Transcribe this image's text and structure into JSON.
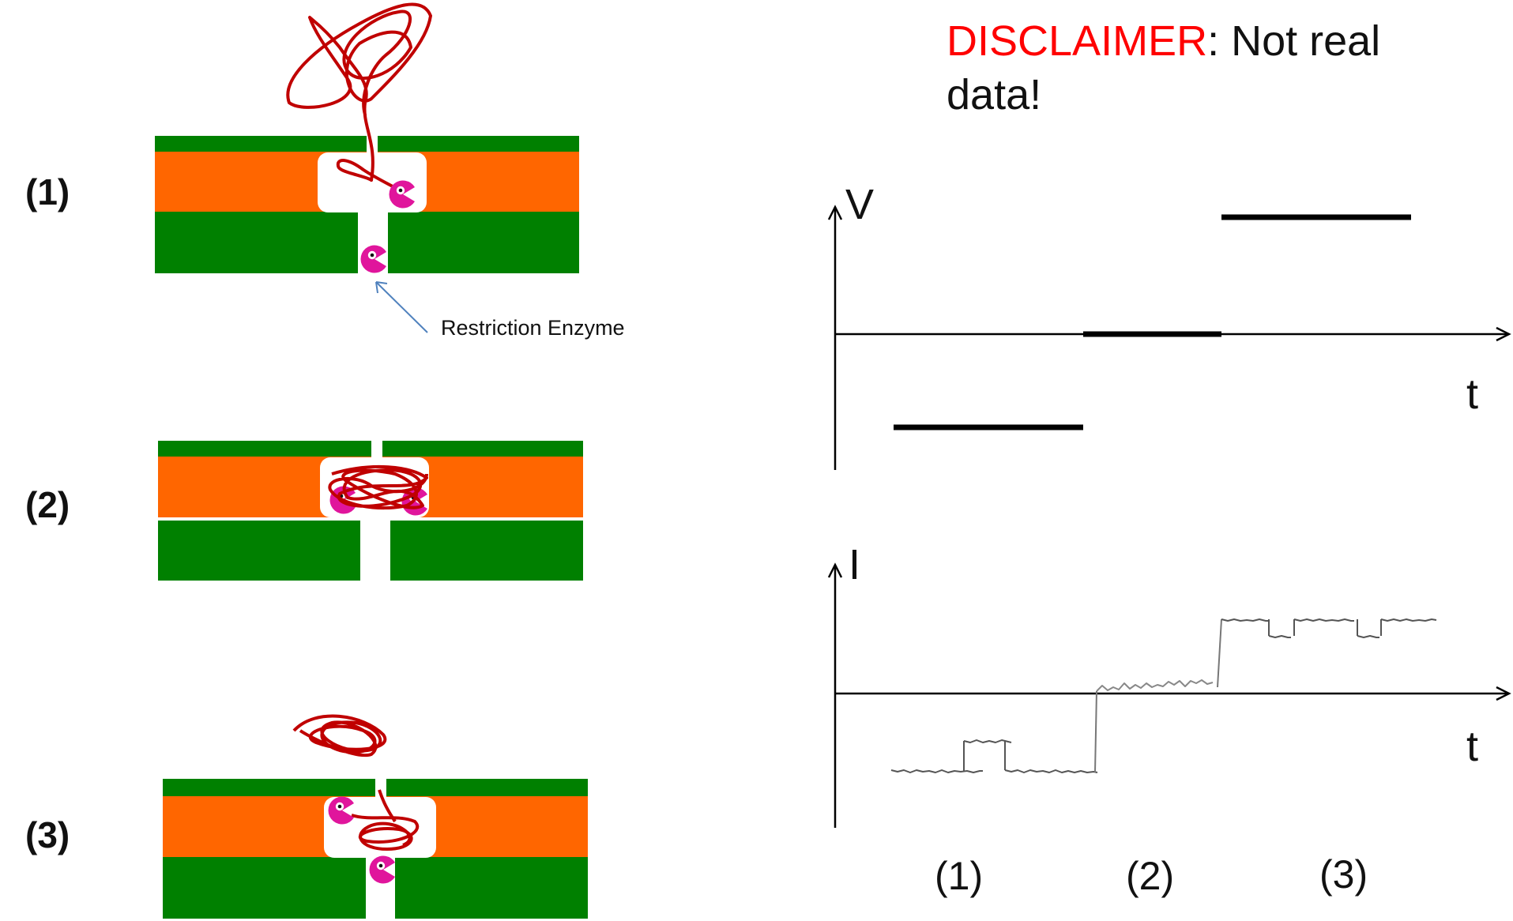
{
  "steps": [
    "(1)",
    "(2)",
    "(3)"
  ],
  "enzyme_label": "Restriction Enzyme",
  "disclaimer": {
    "prefix": "DISCLAIMER",
    "suffix": ": Not real data!"
  },
  "plots": {
    "voltage_axis": "V",
    "current_axis": "I",
    "time_axis": "t",
    "phase_labels": [
      "(1)",
      "(2)",
      "(3)"
    ]
  },
  "colors": {
    "membrane_green": "#008000",
    "membrane_orange": "#ff6600",
    "dna_red": "#c00000",
    "enzyme_magenta": "#e0159c",
    "disclaimer_red": "#ff0000"
  }
}
